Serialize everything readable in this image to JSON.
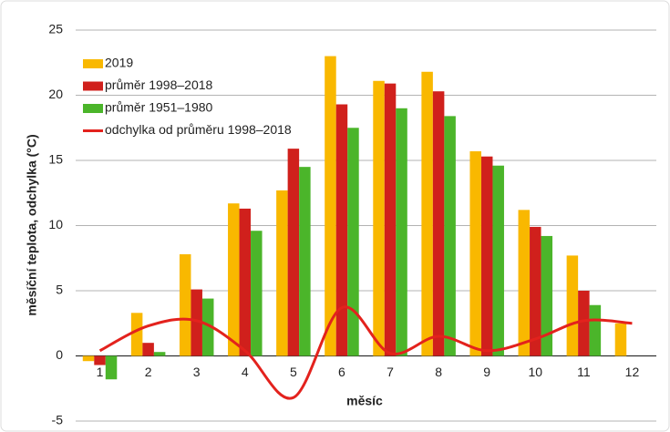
{
  "chart_data": {
    "type": "bar",
    "xlabel": "měsíc",
    "ylabel": "měsíční teplota, odchylka (°C)",
    "categories": [
      "1",
      "2",
      "3",
      "4",
      "5",
      "6",
      "7",
      "8",
      "9",
      "10",
      "11",
      "12"
    ],
    "series": [
      {
        "name": "2019",
        "color": "#f9b800",
        "values": [
          -0.4,
          3.3,
          7.8,
          11.7,
          12.7,
          23.0,
          21.1,
          21.8,
          15.7,
          11.2,
          7.7,
          2.5
        ]
      },
      {
        "name": "průměr 1998–2018",
        "color": "#d0201c",
        "values": [
          -0.7,
          1.0,
          5.1,
          11.3,
          15.9,
          19.3,
          20.9,
          20.3,
          15.3,
          9.9,
          5.0,
          null
        ]
      },
      {
        "name": "průměr 1951–1980",
        "color": "#4bb52a",
        "values": [
          -1.8,
          0.3,
          4.4,
          9.6,
          14.5,
          17.5,
          19.0,
          18.4,
          14.6,
          9.2,
          3.9,
          null
        ]
      },
      {
        "name": "odchylka od průměru 1998–2018",
        "type": "line",
        "color": "#e3221d",
        "values": [
          0.4,
          2.3,
          2.7,
          0.4,
          -3.2,
          3.7,
          0.2,
          1.5,
          0.4,
          1.3,
          2.7,
          2.5
        ]
      }
    ],
    "ylim": [
      -5,
      25
    ],
    "yticks": [
      -5,
      0,
      5,
      10,
      15,
      20,
      25
    ],
    "grid": true,
    "legend": "upper left"
  }
}
